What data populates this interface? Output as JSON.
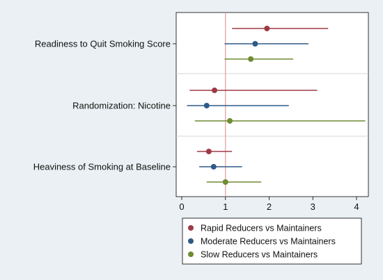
{
  "chart_data": {
    "type": "forest",
    "categories": [
      "Readiness to Quit Smoking Score",
      "Randomization: Nicotine",
      "Heaviness of Smoking at Baseline"
    ],
    "reference_line": 1,
    "xlim": [
      -0.1,
      4.2
    ],
    "xticks": [
      "0",
      "1",
      "2",
      "3",
      "4"
    ],
    "grid": false,
    "legend_placement": "bottom",
    "series": [
      {
        "name": "Rapid Reducers vs Maintainers",
        "color": "#9e3a45",
        "points": [
          {
            "est": 1.95,
            "lo": 1.15,
            "hi": 3.35
          },
          {
            "est": 0.75,
            "lo": 0.18,
            "hi": 3.1
          },
          {
            "est": 0.62,
            "lo": 0.35,
            "hi": 1.15
          }
        ]
      },
      {
        "name": "Moderate Reducers vs Maintainers",
        "color": "#2f5a88",
        "points": [
          {
            "est": 1.68,
            "lo": 0.98,
            "hi": 2.9
          },
          {
            "est": 0.57,
            "lo": 0.12,
            "hi": 2.45
          },
          {
            "est": 0.73,
            "lo": 0.4,
            "hi": 1.38
          }
        ]
      },
      {
        "name": "Slow Reducers vs Maintainers",
        "color": "#6f8b33",
        "points": [
          {
            "est": 1.58,
            "lo": 0.98,
            "hi": 2.55
          },
          {
            "est": 1.1,
            "lo": 0.3,
            "hi": 4.2
          },
          {
            "est": 1.0,
            "lo": 0.57,
            "hi": 1.82
          }
        ]
      }
    ]
  }
}
